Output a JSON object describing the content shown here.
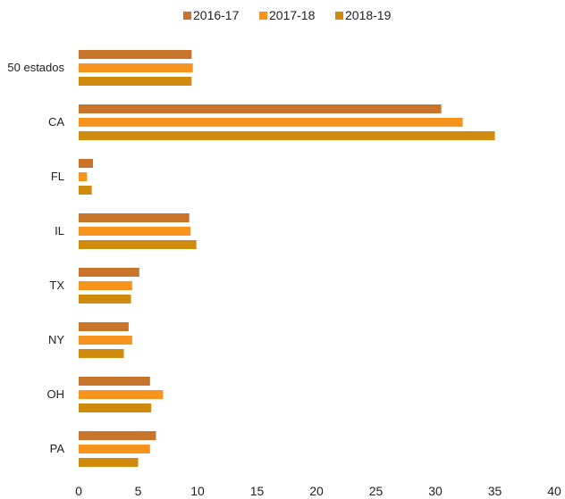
{
  "chart_data": {
    "type": "bar",
    "orientation": "horizontal",
    "categories": [
      "50 estados",
      "CA",
      "FL",
      "IL",
      "TX",
      "NY",
      "OH",
      "PA"
    ],
    "series": [
      {
        "name": "2016-17",
        "color": "#C8742A",
        "values": [
          9.5,
          30.5,
          1.2,
          9.3,
          5.1,
          4.2,
          6.0,
          6.5
        ]
      },
      {
        "name": "2017-18",
        "color": "#F7941D",
        "values": [
          9.6,
          32.3,
          0.7,
          9.4,
          4.5,
          4.5,
          7.1,
          6.0
        ]
      },
      {
        "name": "2018-19",
        "color": "#D08A0E",
        "values": [
          9.5,
          35.0,
          1.1,
          9.9,
          4.4,
          3.8,
          6.1,
          5.0
        ]
      }
    ],
    "xlim": [
      0,
      40
    ],
    "xticks": [
      "0",
      "5",
      "10",
      "15",
      "20",
      "25",
      "30",
      "35",
      "40"
    ],
    "legend_position": "top-center",
    "grid": false
  }
}
